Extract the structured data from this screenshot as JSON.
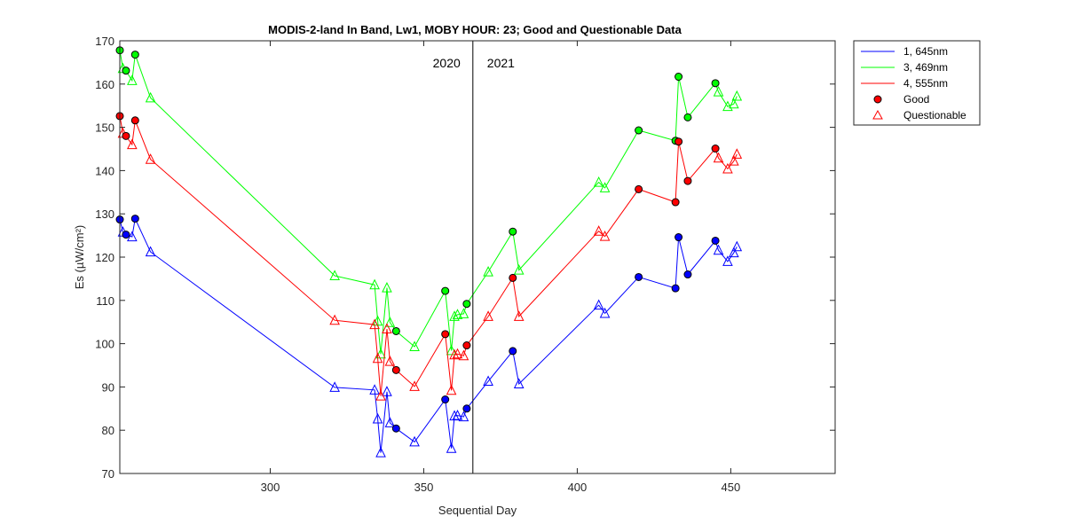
{
  "chart_data": {
    "type": "line",
    "title": "MODIS-2-land In Band,  Lw1, MOBY HOUR: 23;  Good and Questionable Data",
    "xlabel": "Sequential Day",
    "ylabel": "Es (µW/cm²)",
    "xlim": [
      251,
      484
    ],
    "ylim": [
      70,
      170
    ],
    "xticks": [
      300,
      350,
      400,
      450
    ],
    "yticks": [
      70,
      80,
      90,
      100,
      110,
      120,
      130,
      140,
      150,
      160,
      170
    ],
    "grid": false,
    "legend_position": "outside-top-right",
    "year_divider": {
      "x": 366,
      "left_label": "2020",
      "right_label": "2021"
    },
    "legend": {
      "series_645": "1, 645nm",
      "series_469": "3, 469nm",
      "series_555": "4, 555nm",
      "good": "Good",
      "questionable": "Questionable"
    },
    "series": [
      {
        "name": "1, 645nm",
        "color": "#0000ff",
        "points": [
          [
            251,
            128.7,
            "g"
          ],
          [
            252,
            125.8,
            "q"
          ],
          [
            253,
            125.2,
            "g"
          ],
          [
            255,
            124.7,
            "q"
          ],
          [
            256,
            128.9,
            "g"
          ],
          [
            261,
            121.2,
            "q"
          ],
          [
            321,
            89.9,
            "q"
          ],
          [
            334,
            89.3,
            "q"
          ],
          [
            335,
            82.6,
            "q"
          ],
          [
            336,
            74.8,
            "q"
          ],
          [
            338,
            88.9,
            "q"
          ],
          [
            339,
            81.7,
            "q"
          ],
          [
            341,
            80.4,
            "g"
          ],
          [
            347,
            77.3,
            "q"
          ],
          [
            357,
            87.1,
            "g"
          ],
          [
            359,
            75.8,
            "q"
          ],
          [
            360,
            83.3,
            "q"
          ],
          [
            361,
            83.4,
            "q"
          ],
          [
            363,
            83.1,
            "q"
          ],
          [
            364,
            85.0,
            "g"
          ],
          [
            371,
            91.3,
            "q"
          ],
          [
            379,
            98.3,
            "g"
          ],
          [
            381,
            90.7,
            "q"
          ],
          [
            407,
            108.9,
            "q"
          ],
          [
            409,
            107.0,
            "q"
          ],
          [
            420,
            115.4,
            "g"
          ],
          [
            432,
            112.8,
            "g"
          ],
          [
            433,
            124.6,
            "g"
          ],
          [
            436,
            116.0,
            "g"
          ],
          [
            445,
            123.8,
            "g"
          ],
          [
            446,
            121.6,
            "q"
          ],
          [
            449,
            119.0,
            "q"
          ],
          [
            451,
            121.0,
            "q"
          ],
          [
            452,
            122.4,
            "q"
          ]
        ]
      },
      {
        "name": "3, 469nm",
        "color": "#00ff00",
        "points": [
          [
            251,
            167.8,
            "g"
          ],
          [
            252,
            163.6,
            "q"
          ],
          [
            253,
            163.1,
            "g"
          ],
          [
            255,
            160.8,
            "q"
          ],
          [
            256,
            166.8,
            "g"
          ],
          [
            261,
            156.8,
            "q"
          ],
          [
            321,
            115.7,
            "q"
          ],
          [
            334,
            113.6,
            "q"
          ],
          [
            335,
            105.2,
            "q"
          ],
          [
            336,
            97.6,
            "q"
          ],
          [
            338,
            112.9,
            "q"
          ],
          [
            339,
            104.9,
            "q"
          ],
          [
            341,
            102.9,
            "g"
          ],
          [
            347,
            99.3,
            "q"
          ],
          [
            357,
            112.2,
            "g"
          ],
          [
            359,
            98.4,
            "q"
          ],
          [
            360,
            106.3,
            "q"
          ],
          [
            361,
            106.7,
            "q"
          ],
          [
            363,
            106.9,
            "q"
          ],
          [
            364,
            109.2,
            "g"
          ],
          [
            371,
            116.6,
            "q"
          ],
          [
            379,
            125.9,
            "g"
          ],
          [
            381,
            117.0,
            "q"
          ],
          [
            407,
            137.3,
            "q"
          ],
          [
            409,
            136.0,
            "q"
          ],
          [
            420,
            149.3,
            "g"
          ],
          [
            432,
            146.9,
            "g"
          ],
          [
            433,
            161.7,
            "g"
          ],
          [
            436,
            152.3,
            "g"
          ],
          [
            445,
            160.2,
            "g"
          ],
          [
            446,
            158.2,
            "q"
          ],
          [
            449,
            154.8,
            "q"
          ],
          [
            451,
            155.4,
            "q"
          ],
          [
            452,
            157.2,
            "q"
          ]
        ]
      },
      {
        "name": "4, 555nm",
        "color": "#ff0000",
        "points": [
          [
            251,
            152.6,
            "g"
          ],
          [
            252,
            148.6,
            "q"
          ],
          [
            253,
            148.0,
            "g"
          ],
          [
            255,
            146.0,
            "q"
          ],
          [
            256,
            151.6,
            "g"
          ],
          [
            261,
            142.6,
            "q"
          ],
          [
            321,
            105.4,
            "q"
          ],
          [
            334,
            104.4,
            "q"
          ],
          [
            335,
            96.6,
            "q"
          ],
          [
            336,
            87.9,
            "q"
          ],
          [
            338,
            103.4,
            "q"
          ],
          [
            339,
            95.9,
            "q"
          ],
          [
            341,
            93.9,
            "g"
          ],
          [
            347,
            90.1,
            "q"
          ],
          [
            357,
            102.2,
            "g"
          ],
          [
            359,
            89.2,
            "q"
          ],
          [
            360,
            97.4,
            "q"
          ],
          [
            361,
            97.6,
            "q"
          ],
          [
            363,
            97.2,
            "q"
          ],
          [
            364,
            99.6,
            "g"
          ],
          [
            371,
            106.3,
            "q"
          ],
          [
            379,
            115.2,
            "g"
          ],
          [
            381,
            106.3,
            "q"
          ],
          [
            407,
            126.0,
            "q"
          ],
          [
            409,
            124.8,
            "q"
          ],
          [
            420,
            135.7,
            "g"
          ],
          [
            432,
            132.7,
            "g"
          ],
          [
            433,
            146.7,
            "g"
          ],
          [
            436,
            137.6,
            "g"
          ],
          [
            445,
            145.1,
            "g"
          ],
          [
            446,
            142.9,
            "q"
          ],
          [
            449,
            140.4,
            "q"
          ],
          [
            451,
            142.2,
            "q"
          ],
          [
            452,
            143.8,
            "q"
          ]
        ]
      }
    ]
  }
}
